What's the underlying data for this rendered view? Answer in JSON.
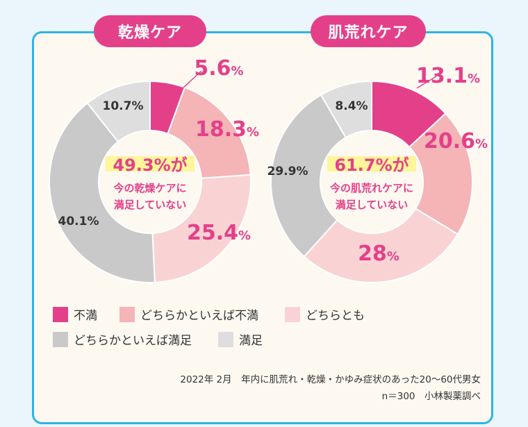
{
  "chart_data": [
    {
      "type": "pie",
      "title": "乾燥ケア",
      "center_highlight": "49.3%が",
      "center_text_1": "今の乾燥ケアに",
      "center_text_2": "満足していない",
      "slices": [
        {
          "label": "不満",
          "value": 5.6,
          "display_num": "5.6",
          "display_unit": "%",
          "color": "#e4408a"
        },
        {
          "label": "どちらかといえば不満",
          "value": 18.3,
          "display_num": "18.3",
          "display_unit": "%",
          "color": "#f5b4b6"
        },
        {
          "label": "どちらとも",
          "value": 25.4,
          "display_num": "25.4",
          "display_unit": "%",
          "color": "#f9d3d4"
        },
        {
          "label": "どちらかといえば満足",
          "value": 40.1,
          "display_num": "40.1%",
          "display_unit": "",
          "color": "#c9c9c9"
        },
        {
          "label": "満足",
          "value": 10.7,
          "display_num": "10.7%",
          "display_unit": "",
          "color": "#dedede"
        }
      ]
    },
    {
      "type": "pie",
      "title": "肌荒れケア",
      "center_highlight": "61.7%が",
      "center_text_1": "今の肌荒れケアに",
      "center_text_2": "満足していない",
      "slices": [
        {
          "label": "不満",
          "value": 13.1,
          "display_num": "13.1",
          "display_unit": "%",
          "color": "#e4408a"
        },
        {
          "label": "どちらかといえば不満",
          "value": 20.6,
          "display_num": "20.6",
          "display_unit": "%",
          "color": "#f5b4b6"
        },
        {
          "label": "どちらとも",
          "value": 28,
          "display_num": "28",
          "display_unit": "%",
          "color": "#f9d3d4"
        },
        {
          "label": "どちらかといえば満足",
          "value": 29.9,
          "display_num": "29.9%",
          "display_unit": "",
          "color": "#c9c9c9"
        },
        {
          "label": "満足",
          "value": 8.4,
          "display_num": "8.4%",
          "display_unit": "",
          "color": "#dedede"
        }
      ]
    }
  ],
  "legend": [
    {
      "label": "不満",
      "color": "#e4408a"
    },
    {
      "label": "どちらかといえば不満",
      "color": "#f5b4b6"
    },
    {
      "label": "どちらとも",
      "color": "#f9d3d4"
    },
    {
      "label": "どちらかといえば満足",
      "color": "#c9c9c9"
    },
    {
      "label": "満足",
      "color": "#dedede"
    }
  ],
  "source_line_1": "2022年 2月　年内に肌荒れ・乾燥・かゆみ症状のあった20〜60代男女",
  "source_line_2": "n＝300　小林製薬調べ"
}
